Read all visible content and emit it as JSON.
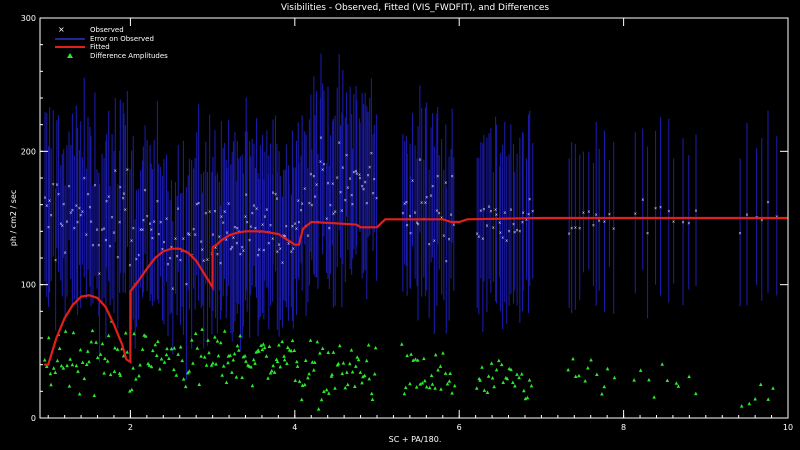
{
  "chart_data": {
    "type": "scatter",
    "title": "Visibilities - Observed, Fitted (VIS_FWDFIT), and Differences",
    "xlabel": "SC + PA/180.",
    "ylabel": "ph / cm2 / sec",
    "xlim": [
      0.9,
      10.0
    ],
    "ylim": [
      0,
      300
    ],
    "x_ticks": [
      2,
      4,
      6,
      8,
      10
    ],
    "y_ticks": [
      0,
      100,
      200,
      300
    ],
    "grid": false,
    "legend_position": "top-left",
    "colors": {
      "observed": "#ffffff",
      "error": "#1a1aa8",
      "fitted": "#e0201c",
      "difference": "#2ee82e",
      "axes": "#ffffff",
      "background": "#000000"
    },
    "series": [
      {
        "name": "Observed",
        "marker": "x",
        "segments": [
          {
            "x0": 0.95,
            "x1": 2.0,
            "n": 50,
            "mean": 150,
            "spread": 55
          },
          {
            "x0": 2.0,
            "x1": 3.0,
            "n": 45,
            "mean": 135,
            "spread": 50
          },
          {
            "x0": 3.0,
            "x1": 4.05,
            "n": 60,
            "mean": 140,
            "spread": 45
          },
          {
            "x0": 4.05,
            "x1": 5.0,
            "n": 50,
            "mean": 175,
            "spread": 50
          },
          {
            "x0": 5.3,
            "x1": 5.95,
            "n": 30,
            "mean": 155,
            "spread": 45
          },
          {
            "x0": 6.2,
            "x1": 6.9,
            "n": 28,
            "mean": 150,
            "spread": 30
          },
          {
            "x0": 7.3,
            "x1": 7.9,
            "n": 12,
            "mean": 150,
            "spread": 25
          },
          {
            "x0": 8.1,
            "x1": 8.9,
            "n": 10,
            "mean": 150,
            "spread": 25
          },
          {
            "x0": 9.4,
            "x1": 9.9,
            "n": 6,
            "mean": 150,
            "spread": 15
          }
        ]
      },
      {
        "name": "Error on Observed",
        "marker": "errorbar",
        "half_width": [
          40,
          75
        ]
      },
      {
        "name": "Fitted",
        "marker": "line",
        "points": [
          [
            0.95,
            40
          ],
          [
            1.0,
            40
          ],
          [
            1.1,
            60
          ],
          [
            1.2,
            75
          ],
          [
            1.3,
            85
          ],
          [
            1.4,
            91
          ],
          [
            1.5,
            92
          ],
          [
            1.6,
            90
          ],
          [
            1.7,
            83
          ],
          [
            1.8,
            70
          ],
          [
            1.9,
            55
          ],
          [
            1.95,
            44
          ],
          [
            2.0,
            42
          ],
          [
            2.0,
            95
          ],
          [
            2.1,
            103
          ],
          [
            2.2,
            112
          ],
          [
            2.3,
            120
          ],
          [
            2.4,
            125
          ],
          [
            2.5,
            127
          ],
          [
            2.6,
            127
          ],
          [
            2.7,
            124
          ],
          [
            2.8,
            118
          ],
          [
            2.9,
            108
          ],
          [
            3.0,
            98
          ],
          [
            3.0,
            128
          ],
          [
            3.05,
            130
          ],
          [
            3.1,
            133
          ],
          [
            3.2,
            137
          ],
          [
            3.3,
            139
          ],
          [
            3.4,
            140
          ],
          [
            3.5,
            140
          ],
          [
            3.6,
            140
          ],
          [
            3.7,
            139
          ],
          [
            3.8,
            138
          ],
          [
            3.9,
            134
          ],
          [
            4.0,
            130
          ],
          [
            4.05,
            130
          ],
          [
            4.1,
            142
          ],
          [
            4.2,
            147
          ],
          [
            4.5,
            146
          ],
          [
            4.75,
            145
          ],
          [
            4.8,
            143
          ],
          [
            5.0,
            143
          ],
          [
            5.1,
            149
          ],
          [
            5.5,
            149
          ],
          [
            5.8,
            149
          ],
          [
            5.9,
            147
          ],
          [
            6.0,
            147
          ],
          [
            6.1,
            149
          ],
          [
            7.0,
            150
          ],
          [
            8.0,
            150
          ],
          [
            9.0,
            150
          ],
          [
            10.0,
            150
          ]
        ]
      },
      {
        "name": "Difference Amplitudes",
        "marker": "triangle",
        "segments": [
          {
            "x0": 0.95,
            "x1": 2.0,
            "n": 50,
            "mean": 45,
            "spread": 40
          },
          {
            "x0": 2.0,
            "x1": 3.0,
            "n": 45,
            "mean": 45,
            "spread": 35
          },
          {
            "x0": 3.0,
            "x1": 4.05,
            "n": 60,
            "mean": 45,
            "spread": 30
          },
          {
            "x0": 4.05,
            "x1": 5.0,
            "n": 50,
            "mean": 35,
            "spread": 35
          },
          {
            "x0": 5.3,
            "x1": 5.95,
            "n": 30,
            "mean": 30,
            "spread": 35
          },
          {
            "x0": 6.2,
            "x1": 6.9,
            "n": 28,
            "mean": 25,
            "spread": 25
          },
          {
            "x0": 7.3,
            "x1": 7.9,
            "n": 12,
            "mean": 30,
            "spread": 25
          },
          {
            "x0": 8.1,
            "x1": 8.9,
            "n": 10,
            "mean": 25,
            "spread": 20
          },
          {
            "x0": 9.4,
            "x1": 9.9,
            "n": 6,
            "mean": 15,
            "spread": 15
          }
        ]
      }
    ]
  }
}
